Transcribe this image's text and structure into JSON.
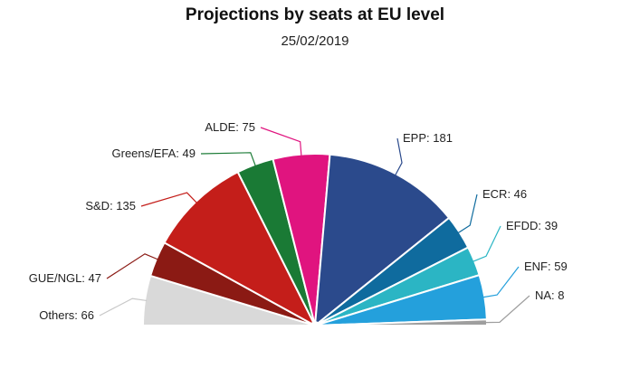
{
  "chart_data": {
    "type": "pie",
    "variant": "parliament-semicircle",
    "title": "Projections by seats at EU level",
    "subtitle": "25/02/2019",
    "slices": [
      {
        "label": "Others",
        "value": 66,
        "color": "#d9d9d9"
      },
      {
        "label": "GUE/NGL",
        "value": 47,
        "color": "#8b1a14"
      },
      {
        "label": "S&D",
        "value": 135,
        "color": "#c41e1a"
      },
      {
        "label": "Greens/EFA",
        "value": 49,
        "color": "#1a7a35"
      },
      {
        "label": "ALDE",
        "value": 75,
        "color": "#e0147f"
      },
      {
        "label": "EPP",
        "value": 181,
        "color": "#2b4a8c"
      },
      {
        "label": "ECR",
        "value": 46,
        "color": "#0f6b9e"
      },
      {
        "label": "EFDD",
        "value": 39,
        "color": "#2bb5c4"
      },
      {
        "label": "ENF",
        "value": 59,
        "color": "#24a0dc"
      },
      {
        "label": "NA",
        "value": 8,
        "color": "#9e9e9e"
      }
    ]
  }
}
